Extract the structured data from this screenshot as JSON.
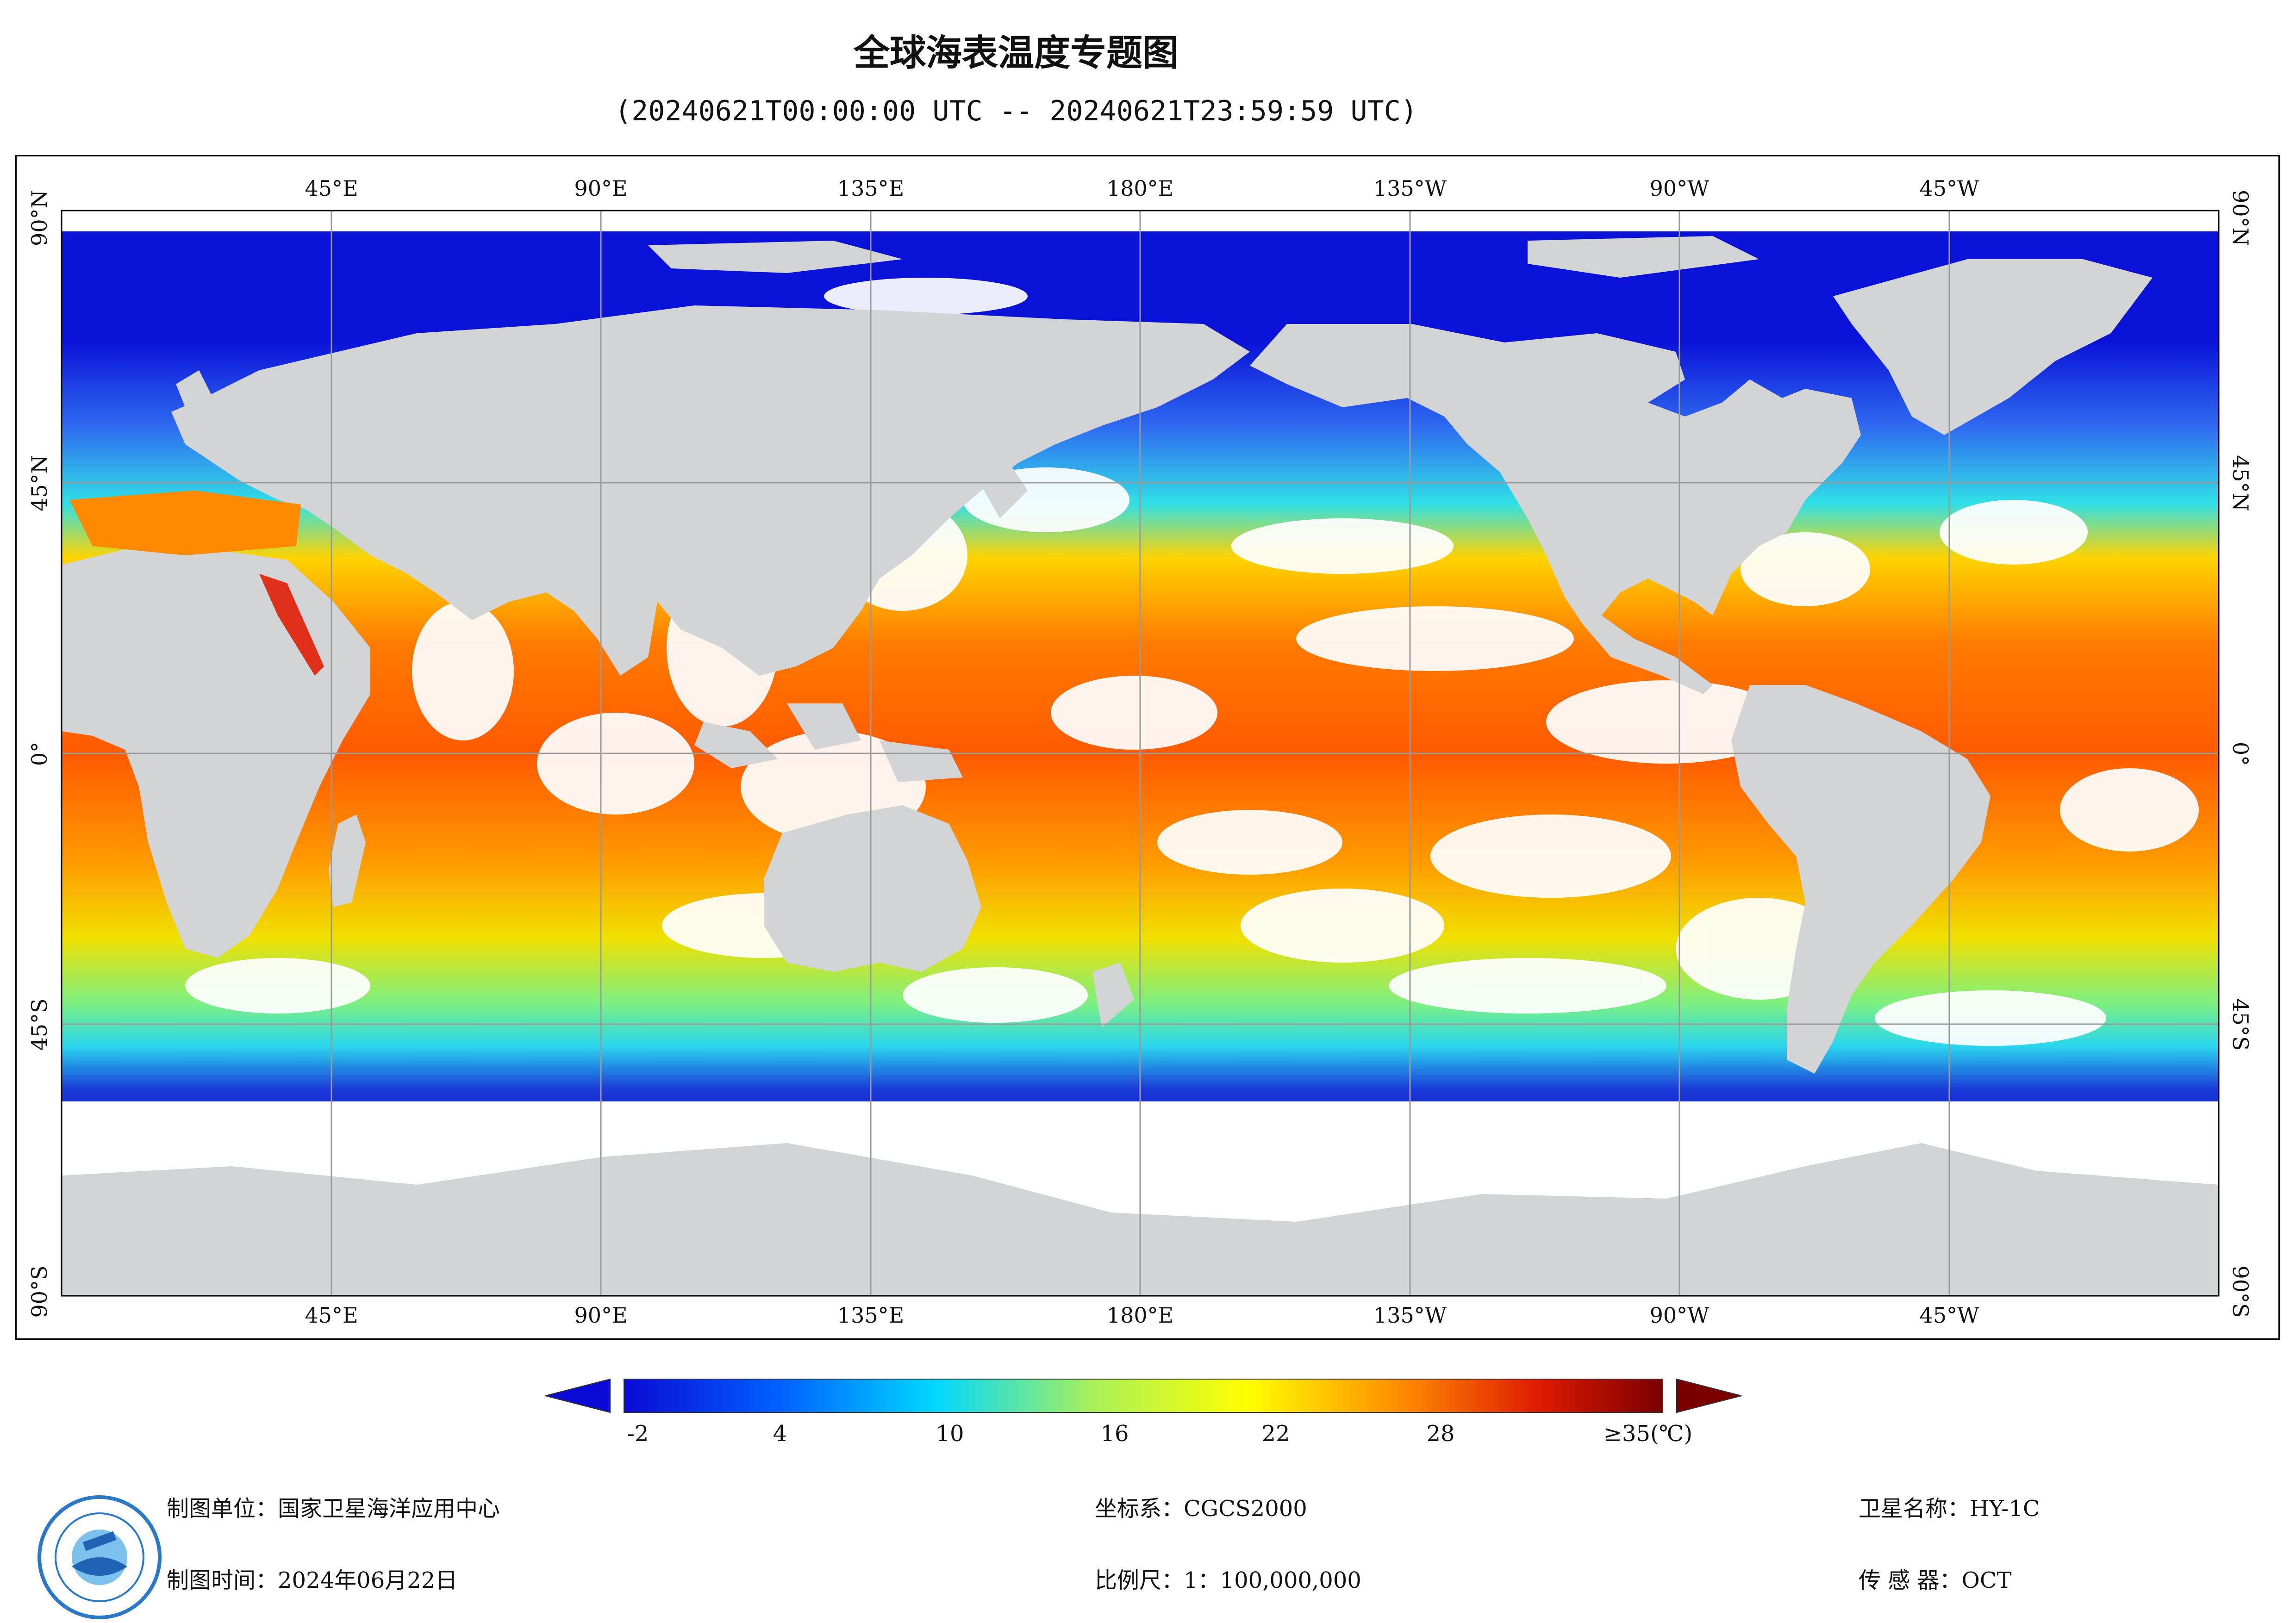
{
  "title": "全球海表温度专题图",
  "subtitle": "(20240621T00:00:00 UTC -- 20240621T23:59:59 UTC)",
  "map": {
    "top_lon_labels": [
      "45°E",
      "90°E",
      "135°E",
      "180°E",
      "135°W",
      "90°W",
      "45°W"
    ],
    "bottom_lon_labels": [
      "45°E",
      "90°E",
      "135°E",
      "180°E",
      "135°W",
      "90°W",
      "45°W"
    ],
    "lat_labels": [
      "90°N",
      "45°N",
      "0°",
      "45°S",
      "90°S"
    ],
    "colors": {
      "land": "#d3d4d6",
      "cloud": "#ffffff",
      "frame": "#000000",
      "grid": "#9a9a9a"
    }
  },
  "legend": {
    "tick_labels": [
      "-2",
      "4",
      "10",
      "16",
      "22",
      "28",
      "≥35(℃)"
    ],
    "colors": [
      "#0a0ad6",
      "#0060ff",
      "#00d8ff",
      "#a8f05a",
      "#ffff00",
      "#ff8a00",
      "#e01a00",
      "#7a0000"
    ]
  },
  "footer": {
    "org_label": "制图单位：国家卫星海洋应用中心",
    "date_label": "制图时间：2024年06月22日",
    "crs_label": "坐标系：CGCS2000",
    "scale_label": "比例尺：1：100,000,000",
    "satellite_label": "卫星名称：HY-1C",
    "sensor_label": "传 感 器：OCT"
  }
}
